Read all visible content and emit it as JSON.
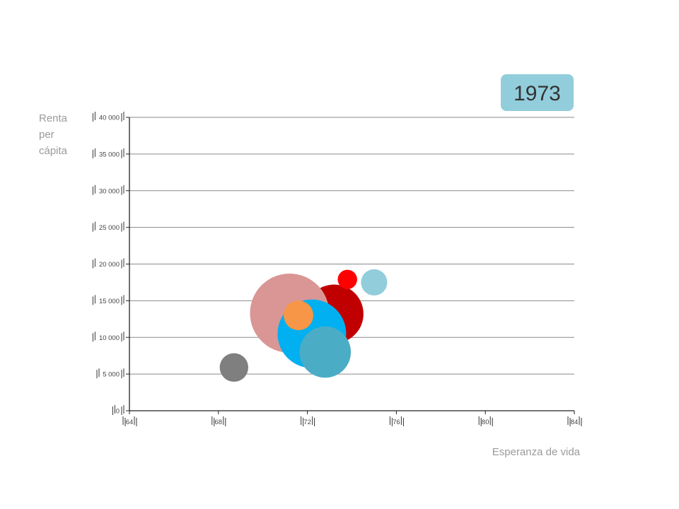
{
  "chart_data": {
    "type": "scatter",
    "bubble": true,
    "year_label": "1973",
    "ylabel_lines": [
      "Renta",
      "per",
      "cápita"
    ],
    "xlabel": "Esperanza de vida",
    "xlim": [
      64,
      84
    ],
    "ylim": [
      0,
      40000
    ],
    "x_ticks": [
      64,
      68,
      72,
      76,
      80,
      84
    ],
    "x_tick_labels": [
      "64",
      "68",
      "72",
      "76",
      "80",
      "84"
    ],
    "y_ticks": [
      0,
      5000,
      10000,
      15000,
      20000,
      25000,
      30000,
      35000,
      40000
    ],
    "y_tick_labels": [
      "0",
      "5 000",
      "10 000",
      "15 000",
      "20 000",
      "25 000",
      "30 000",
      "35 000",
      "40 000"
    ],
    "grid": true,
    "points": [
      {
        "x": 73.2,
        "y": 13200,
        "size": 0.55,
        "color": "#c00000"
      },
      {
        "x": 71.2,
        "y": 13300,
        "size": 1.0,
        "color": "#da9694"
      },
      {
        "x": 72.2,
        "y": 10500,
        "size": 0.75,
        "color": "#00b0f0"
      },
      {
        "x": 72.8,
        "y": 8000,
        "size": 0.42,
        "color": "#4bacc6"
      },
      {
        "x": 71.6,
        "y": 13000,
        "size": 0.14,
        "color": "#f79646"
      },
      {
        "x": 73.8,
        "y": 17900,
        "size": 0.06,
        "color": "#ff0000"
      },
      {
        "x": 75.0,
        "y": 17500,
        "size": 0.11,
        "color": "#92cddc"
      },
      {
        "x": 68.7,
        "y": 5900,
        "size": 0.13,
        "color": "#7f7f7f"
      }
    ],
    "colors": {
      "year_box": "#92cddc",
      "grid": "#8a8a8a",
      "axis": "#222222"
    }
  }
}
